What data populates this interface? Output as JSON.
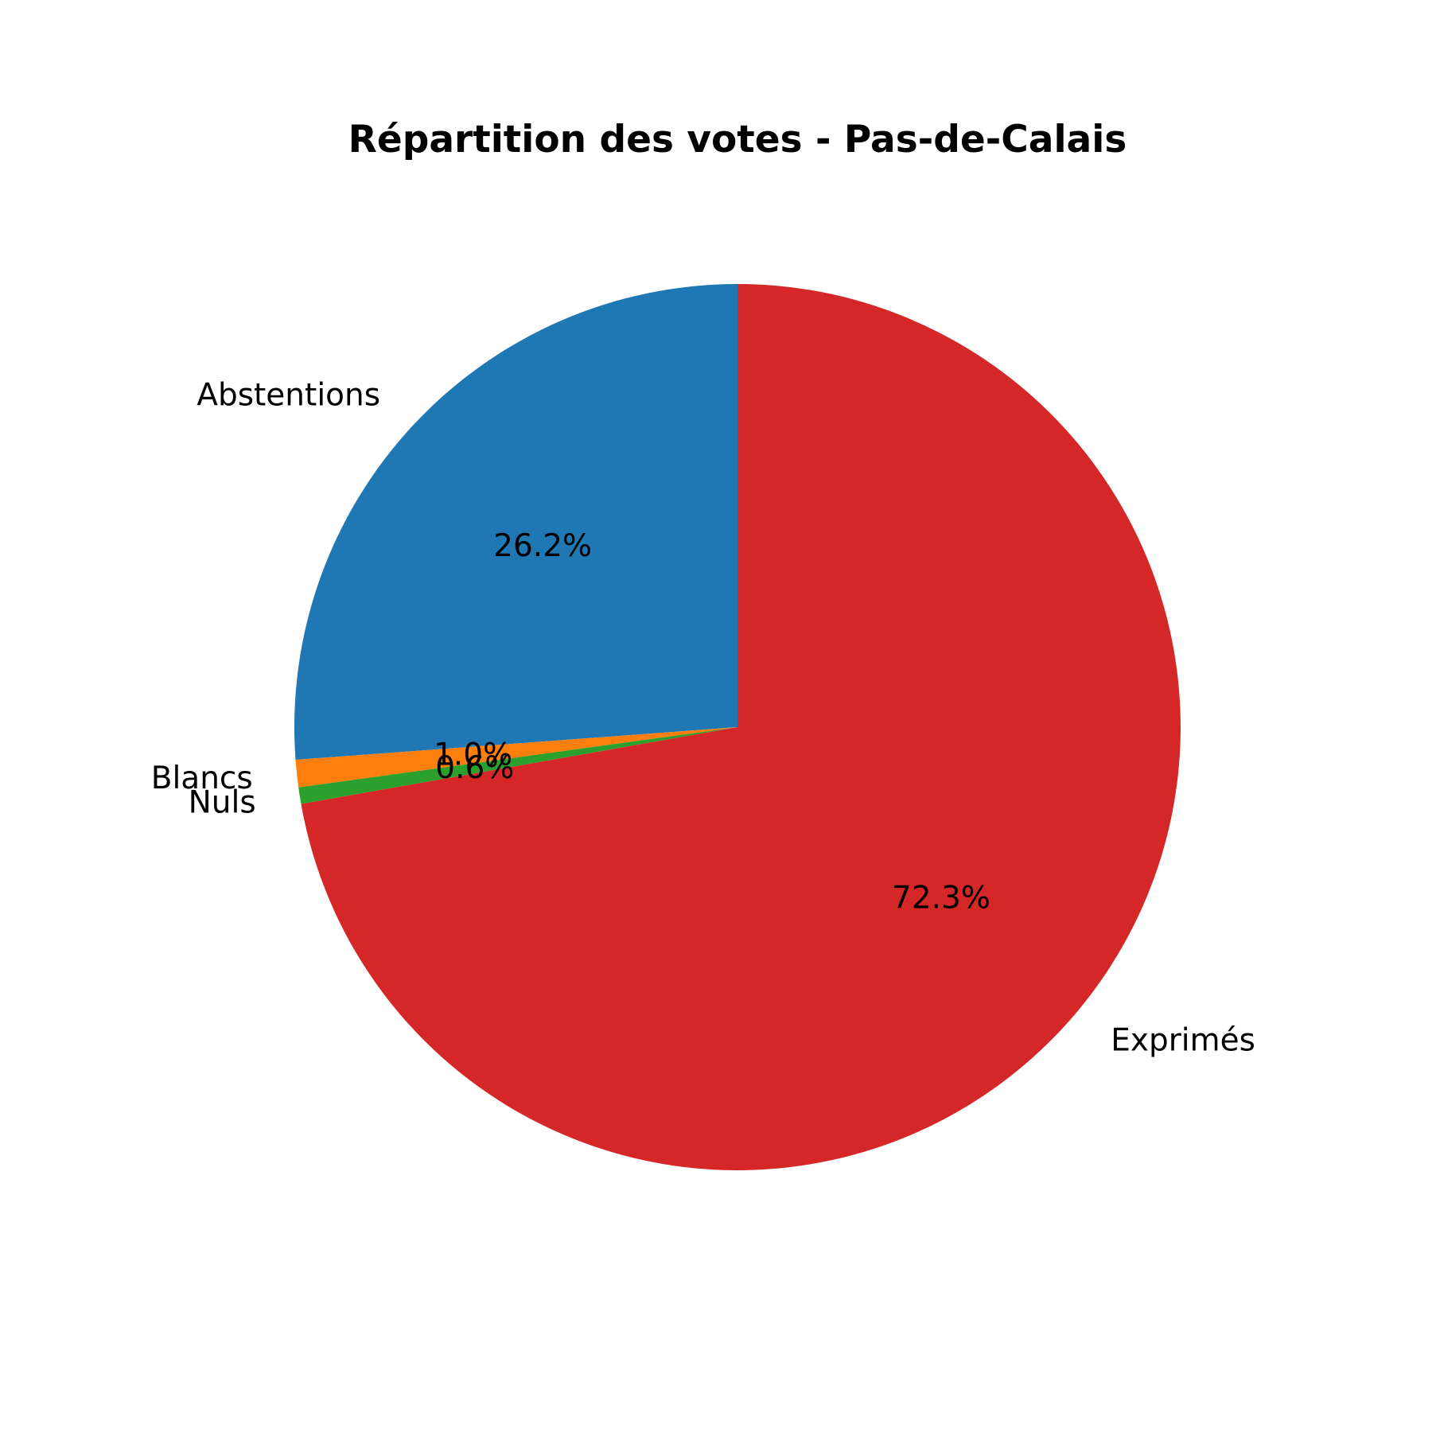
{
  "chart_data": {
    "type": "pie",
    "title": "Répartition des votes - Pas-de-Calais",
    "start_angle_deg": 90,
    "direction": "counterclockwise",
    "slices": [
      {
        "label": "Abstentions",
        "value": 26.2,
        "pct_label": "26.2%",
        "color": "#1f77b4"
      },
      {
        "label": "Blancs",
        "value": 1.0,
        "pct_label": "1.0%",
        "color": "#ff7f0e"
      },
      {
        "label": "Nuls",
        "value": 0.6,
        "pct_label": "0.6%",
        "color": "#2ca02c"
      },
      {
        "label": "Exprimés",
        "value": 72.3,
        "pct_label": "72.3%",
        "color": "#d62728"
      }
    ]
  }
}
